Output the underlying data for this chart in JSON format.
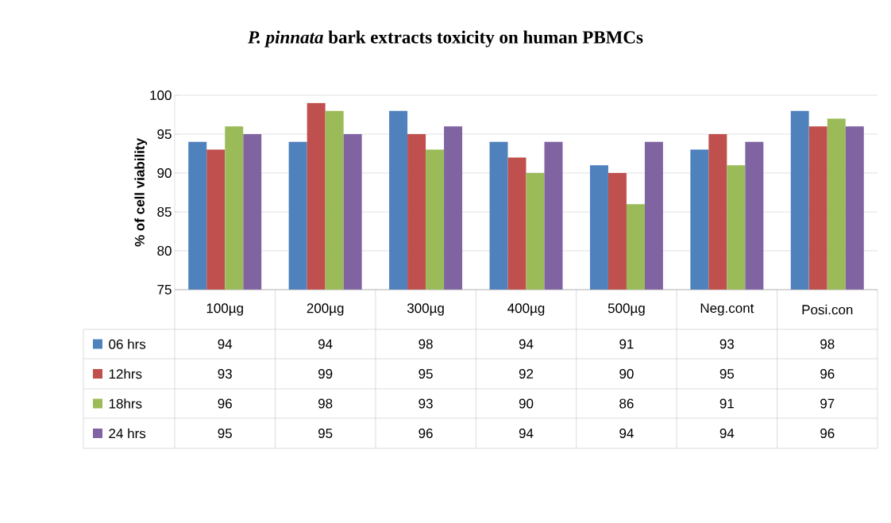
{
  "chart_data": {
    "type": "bar",
    "title": "*P. pinnata* bark extracts toxicity on human PBMCs",
    "ylabel": "% of cell viability",
    "categories": [
      "100µg",
      "200µg",
      "300µg",
      "400µg",
      "500µg",
      "Neg.cont",
      "Posi.con"
    ],
    "series": [
      {
        "name": "06 hrs",
        "color": "#4f81bd",
        "values": [
          94,
          94,
          98,
          94,
          91,
          93,
          98
        ]
      },
      {
        "name": "12hrs",
        "color": "#c0504d",
        "values": [
          93,
          99,
          95,
          92,
          90,
          95,
          96
        ]
      },
      {
        "name": "18hrs",
        "color": "#9bbb59",
        "values": [
          96,
          98,
          93,
          90,
          86,
          91,
          97
        ]
      },
      {
        "name": "24 hrs",
        "color": "#8064a2",
        "values": [
          95,
          95,
          96,
          94,
          94,
          94,
          96
        ]
      }
    ],
    "ylim": [
      75,
      100
    ],
    "yticks": [
      75,
      80,
      85,
      90,
      95,
      100
    ],
    "grid": "y",
    "legend": "bottom",
    "data_labels": true
  }
}
